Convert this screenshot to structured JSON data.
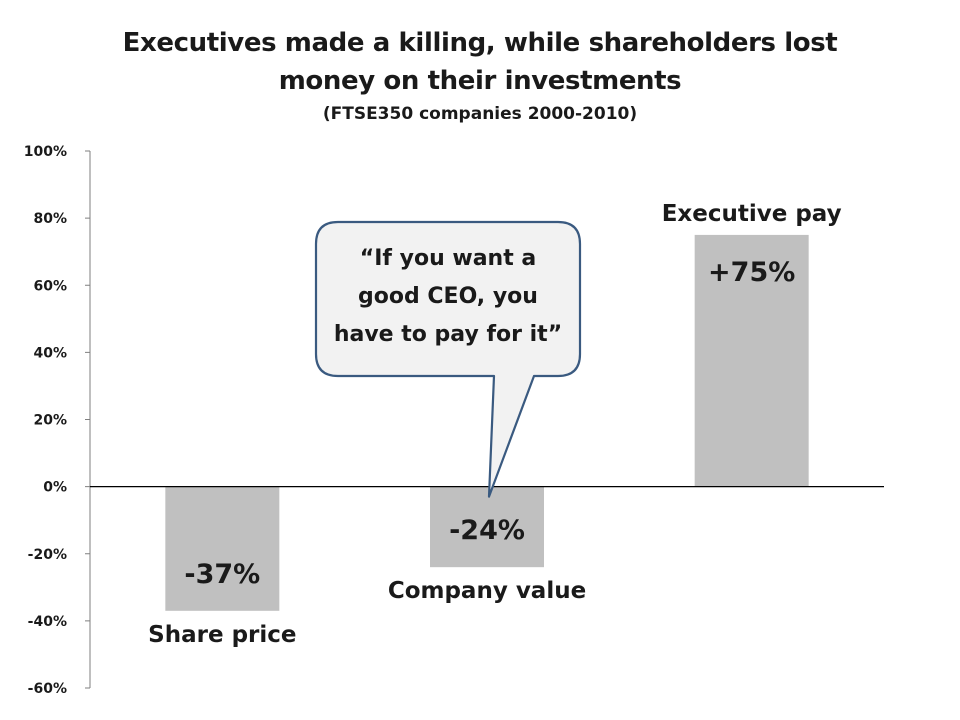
{
  "chart_data": {
    "type": "bar",
    "title": "Executives made a killing, while shareholders lost money on their investments",
    "title_lines": [
      "Executives made a killing, while shareholders lost",
      "money on their investments"
    ],
    "subtitle": "(FTSE350 companies 2000-2010)",
    "xlabel": "",
    "ylabel": "",
    "categories": [
      "Share price",
      "Company value",
      "Executive pay"
    ],
    "values": [
      -37,
      -24,
      75
    ],
    "data_labels": [
      "-37%",
      "-24%",
      "+75%"
    ],
    "ylim": [
      -60,
      100
    ],
    "yticks": [
      100,
      80,
      60,
      40,
      20,
      0,
      -20,
      -40,
      -60
    ],
    "ytick_labels": [
      "100%",
      "80%",
      "60%",
      "40%",
      "20%",
      "0%",
      "-20%",
      "-40%",
      "-60%"
    ],
    "grid": false,
    "legend": "none",
    "bar_color": "#c0c0c0",
    "annotation": {
      "lines": [
        "“If you want a",
        "good CEO, you",
        "have to pay for it”"
      ],
      "points_to": "Company value",
      "fill": "#f2f2f2",
      "border": "#3a5a80"
    }
  }
}
